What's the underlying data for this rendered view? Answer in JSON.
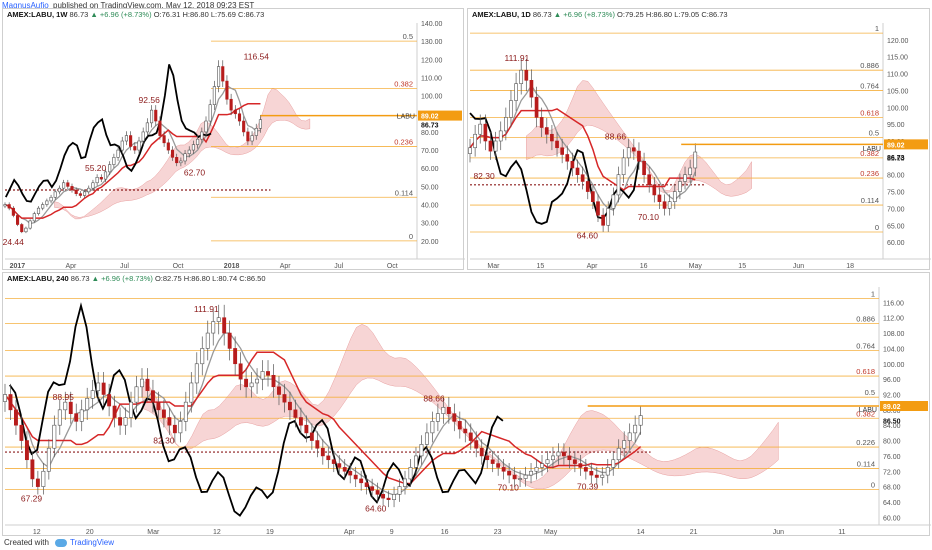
{
  "header": {
    "author": "MagnusAufio",
    "published_text": "published on TradingView.com, May 12, 2018 09:23 EST"
  },
  "footer": {
    "created_with": "Created with",
    "brand": "TradingView"
  },
  "colors": {
    "price_up": "#ffffff",
    "price_down": "#b71c1c",
    "fib_line": "#f5b041",
    "fib_label": "#c0392b",
    "cloud": "#f4c7c7",
    "kijun": "#d62728",
    "tenkan": "#999999",
    "chikou": "#000000",
    "accent": "#f39c12"
  },
  "chart_data": [
    {
      "type": "candlestick",
      "panel": "weekly",
      "header": {
        "symbol": "AMEX:LABU, 1W",
        "last": "86.73",
        "change": "▲ +6.96 (+8.73%)",
        "o": "O:76.31",
        "h": "H:86.80",
        "l": "L:75.69",
        "c": "C:86.73"
      },
      "ylim": [
        10,
        140
      ],
      "y_ticks": [
        20,
        30,
        40,
        50,
        60,
        70,
        80,
        90,
        100,
        110,
        120,
        130,
        140
      ],
      "y_tick_labels": [
        "20.00",
        "30.00",
        "40.00",
        "50.00",
        "60.00",
        "70.00",
        "80.00",
        "90.00",
        "100.00",
        "110.00",
        "120.00",
        "130.00",
        "140.00"
      ],
      "x_ticks": [
        {
          "label": "2017",
          "t": 3
        },
        {
          "label": "Apr",
          "t": 16
        },
        {
          "label": "Jul",
          "t": 29
        },
        {
          "label": "Oct",
          "t": 42
        },
        {
          "label": "2018",
          "t": 55
        },
        {
          "label": "Apr",
          "t": 68
        },
        {
          "label": "Jul",
          "t": 81
        },
        {
          "label": "Oct",
          "t": 94
        }
      ],
      "x_range": [
        0,
        100
      ],
      "close": [
        40,
        38,
        34,
        29,
        25,
        27,
        31,
        35,
        38,
        40,
        42,
        44,
        47,
        49,
        52,
        50,
        48,
        46,
        45,
        47,
        49,
        52,
        55,
        54,
        58,
        62,
        66,
        70,
        75,
        78,
        72,
        70,
        75,
        80,
        85,
        92,
        86,
        78,
        74,
        70,
        66,
        63,
        64,
        68,
        70,
        73,
        76,
        80,
        86,
        95,
        105,
        116,
        108,
        98,
        92,
        90,
        86,
        80,
        75,
        78,
        82,
        86.73
      ],
      "price_labels": [
        {
          "t": 2,
          "v": 24.44,
          "text": "24.44",
          "pos": "below"
        },
        {
          "t": 22,
          "v": 55.2,
          "text": "55.20",
          "pos": "above"
        },
        {
          "t": 35,
          "v": 92.56,
          "text": "92.56",
          "pos": "above"
        },
        {
          "t": 46,
          "v": 62.7,
          "text": "62.70",
          "pos": "below"
        },
        {
          "t": 61,
          "v": 116.54,
          "text": "116.54",
          "pos": "above"
        }
      ],
      "fib": {
        "left_t": 50,
        "lines": [
          {
            "label": "0.5",
            "v": 130
          },
          {
            "label": "0.382",
            "v": 104
          },
          {
            "label": "0.236",
            "v": 72
          },
          {
            "label": "0.114",
            "v": 44
          },
          {
            "label": "0",
            "v": 20
          }
        ]
      },
      "tags": [
        {
          "text": "LABU",
          "v": 86.73
        },
        {
          "text": "86.73",
          "v": 86.73
        }
      ],
      "orange_line": {
        "v": 89.0,
        "from_t": 62,
        "label": "89.02"
      },
      "dotted_line": {
        "v": 48,
        "from_t": 0
      }
    },
    {
      "type": "candlestick",
      "panel": "daily",
      "header": {
        "symbol": "AMEX:LABU, 1D",
        "last": "86.73",
        "change": "▲ +6.96 (+8.73%)",
        "o": "O:79.25",
        "h": "H:86.80",
        "l": "L:79.05",
        "c": "C:86.73"
      },
      "ylim": [
        55,
        125
      ],
      "y_ticks": [
        60,
        65,
        70,
        75,
        80,
        85,
        90,
        95,
        100,
        105,
        110,
        115,
        120
      ],
      "y_tick_labels": [
        "60.00",
        "65.00",
        "70.00",
        "75.00",
        "80.00",
        "85.00",
        "90.00",
        "95.00",
        "100.00",
        "105.00",
        "110.00",
        "115.00",
        "120.00"
      ],
      "x_ticks": [
        {
          "label": "Mar",
          "t": 5
        },
        {
          "label": "15",
          "t": 15
        },
        {
          "label": "Apr",
          "t": 26
        },
        {
          "label": "16",
          "t": 37
        },
        {
          "label": "May",
          "t": 48
        },
        {
          "label": "15",
          "t": 58
        },
        {
          "label": "Jun",
          "t": 70
        },
        {
          "label": "18",
          "t": 81
        }
      ],
      "x_range": [
        0,
        88
      ],
      "close": [
        88,
        92,
        95,
        90,
        87,
        90,
        93,
        97,
        102,
        107,
        111,
        108,
        103,
        97,
        94,
        92,
        90,
        88,
        86,
        84,
        82,
        80,
        78,
        75,
        72,
        68,
        65,
        70,
        74,
        80,
        85,
        88,
        87,
        84,
        80,
        77,
        74,
        72,
        70,
        72,
        75,
        78,
        80,
        82,
        86.73
      ],
      "price_labels": [
        {
          "t": 10,
          "v": 111.91,
          "text": "111.91",
          "pos": "above"
        },
        {
          "t": 3,
          "v": 82.3,
          "text": "82.30",
          "pos": "below"
        },
        {
          "t": 25,
          "v": 64.6,
          "text": "64.60",
          "pos": "below"
        },
        {
          "t": 31,
          "v": 88.66,
          "text": "88.66",
          "pos": "above"
        },
        {
          "t": 38,
          "v": 70.1,
          "text": "70.10",
          "pos": "below"
        }
      ],
      "fib": {
        "left_t": 0,
        "lines": [
          {
            "label": "1",
            "v": 122
          },
          {
            "label": "0.886",
            "v": 111
          },
          {
            "label": "0.764",
            "v": 105
          },
          {
            "label": "0.618",
            "v": 97
          },
          {
            "label": "0.5",
            "v": 91
          },
          {
            "label": "0.382",
            "v": 85
          },
          {
            "label": "0.236",
            "v": 79
          },
          {
            "label": "0.114",
            "v": 71
          },
          {
            "label": "0",
            "v": 63
          }
        ]
      },
      "tags": [
        {
          "text": "LABU",
          "v": 86.73
        },
        {
          "text": "86.73",
          "v": 86.73
        }
      ],
      "orange_line": {
        "v": 89.0,
        "from_t": 45,
        "label": "89.02"
      },
      "dotted_line": {
        "v": 77,
        "from_t": 0
      }
    },
    {
      "type": "candlestick",
      "panel": "4h",
      "header": {
        "symbol": "AMEX:LABU, 240",
        "last": "86.73",
        "change": "▲ +6.96 (+8.73%)",
        "o": "O:82.75",
        "h": "H:86.80",
        "l": "L:80.74",
        "c": "C:86.50"
      },
      "ylim": [
        58,
        120
      ],
      "y_ticks": [
        60,
        64,
        68,
        72,
        76,
        80,
        84,
        88,
        92,
        96,
        100,
        104,
        108,
        112,
        116
      ],
      "y_tick_labels": [
        "60.00",
        "64.00",
        "68.00",
        "72.00",
        "76.00",
        "80.00",
        "84.00",
        "88.00",
        "92.00",
        "96.00",
        "100.00",
        "104.00",
        "108.00",
        "112.00",
        "116.00"
      ],
      "x_ticks": [
        {
          "label": "12",
          "t": 6
        },
        {
          "label": "20",
          "t": 16
        },
        {
          "label": "Mar",
          "t": 28
        },
        {
          "label": "12",
          "t": 40
        },
        {
          "label": "19",
          "t": 50
        },
        {
          "label": "Apr",
          "t": 65
        },
        {
          "label": "9",
          "t": 73
        },
        {
          "label": "16",
          "t": 83
        },
        {
          "label": "23",
          "t": 93
        },
        {
          "label": "May",
          "t": 103
        },
        {
          "label": "14",
          "t": 120
        },
        {
          "label": "21",
          "t": 130
        },
        {
          "label": "Jun",
          "t": 146
        },
        {
          "label": "11",
          "t": 158
        }
      ],
      "x_range": [
        0,
        165
      ],
      "close": [
        92,
        88,
        84,
        80,
        75,
        70,
        68,
        72,
        78,
        84,
        88,
        90,
        87,
        85,
        88,
        91,
        93,
        95,
        92,
        89,
        86,
        84,
        86,
        90,
        94,
        96,
        93,
        90,
        88,
        86,
        84,
        82,
        85,
        90,
        95,
        100,
        104,
        108,
        111,
        112,
        108,
        104,
        100,
        96,
        94,
        95,
        96,
        98,
        97,
        94,
        92,
        90,
        88,
        86,
        84,
        82,
        80,
        78,
        76,
        75,
        74,
        73,
        72,
        71,
        70,
        69,
        68,
        67,
        66,
        65,
        64.6,
        66,
        68,
        70,
        73,
        76,
        79,
        82,
        85,
        87,
        88.66,
        87,
        85,
        83,
        82,
        80,
        78,
        76,
        75,
        74,
        73,
        72,
        71,
        70,
        70.1,
        71,
        72,
        73,
        74,
        75,
        76,
        77,
        76,
        75,
        74,
        73,
        72,
        71,
        70.39,
        71,
        73,
        75,
        78,
        80,
        82,
        84,
        86.5
      ],
      "price_labels": [
        {
          "t": 38,
          "v": 111.91,
          "text": "111.91",
          "pos": "above"
        },
        {
          "t": 11,
          "v": 88.95,
          "text": "88.95",
          "pos": "above"
        },
        {
          "t": 5,
          "v": 67.29,
          "text": "67.29",
          "pos": "below"
        },
        {
          "t": 30,
          "v": 82.3,
          "text": "82.30",
          "pos": "below"
        },
        {
          "t": 70,
          "v": 64.6,
          "text": "64.60",
          "pos": "below"
        },
        {
          "t": 81,
          "v": 88.66,
          "text": "88.66",
          "pos": "above"
        },
        {
          "t": 95,
          "v": 70.1,
          "text": "70.10",
          "pos": "below"
        },
        {
          "t": 110,
          "v": 70.39,
          "text": "70.39",
          "pos": "below"
        }
      ],
      "fib": {
        "left_t": 0,
        "lines": [
          {
            "label": "1",
            "v": 117
          },
          {
            "label": "0.886",
            "v": 110.5
          },
          {
            "label": "0.764",
            "v": 103.5
          },
          {
            "label": "0.618",
            "v": 96.8
          },
          {
            "label": "0.5",
            "v": 91.3
          },
          {
            "label": "0.382",
            "v": 85.8
          },
          {
            "label": "0.226",
            "v": 78.3
          },
          {
            "label": "0.114",
            "v": 72.7
          },
          {
            "label": "0",
            "v": 67.29
          }
        ]
      },
      "tags": [
        {
          "text": "LABU",
          "v": 87.2
        },
        {
          "text": "86.50",
          "v": 86.5
        }
      ],
      "orange_line": {
        "v": 89.0,
        "from_t": 110,
        "label": "89.02"
      },
      "dotted_line": {
        "v": 77,
        "from_t": 0
      }
    }
  ]
}
